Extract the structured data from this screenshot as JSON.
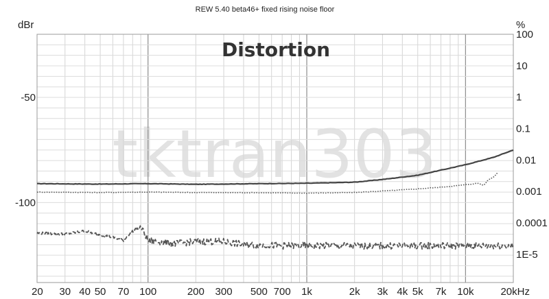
{
  "chart_data": {
    "type": "line",
    "title": "REW 5.40 beta46+ fixed rising noise floor",
    "heading": "Distortion",
    "watermark": "tktran303",
    "x_scale": "log",
    "xlim": [
      20,
      20000
    ],
    "x_ticks": [
      {
        "v": 20,
        "label": "20"
      },
      {
        "v": 30,
        "label": "30"
      },
      {
        "v": 40,
        "label": "40"
      },
      {
        "v": 50,
        "label": "50"
      },
      {
        "v": 70,
        "label": "70"
      },
      {
        "v": 100,
        "label": "100"
      },
      {
        "v": 200,
        "label": "200"
      },
      {
        "v": 300,
        "label": "300"
      },
      {
        "v": 500,
        "label": "500"
      },
      {
        "v": 700,
        "label": "700"
      },
      {
        "v": 1000,
        "label": "1k"
      },
      {
        "v": 2000,
        "label": "2k"
      },
      {
        "v": 3000,
        "label": "3k"
      },
      {
        "v": 4000,
        "label": "4k"
      },
      {
        "v": 5000,
        "label": "5k"
      },
      {
        "v": 7000,
        "label": "7k"
      },
      {
        "v": 10000,
        "label": "10k"
      },
      {
        "v": 20000,
        "label": "20kHz"
      }
    ],
    "left_axis": {
      "label": "dBr",
      "ylim": [
        -138,
        -20
      ],
      "ticks": [
        {
          "v": -50,
          "label": "-50"
        },
        {
          "v": -100,
          "label": "-100"
        }
      ]
    },
    "right_axis": {
      "label": "%",
      "scale": "log",
      "ylim": [
        1.26e-06,
        100
      ],
      "ticks": [
        {
          "v": 100,
          "label": "100"
        },
        {
          "v": 10,
          "label": "10"
        },
        {
          "v": 1,
          "label": "1"
        },
        {
          "v": 0.1,
          "label": "0.1"
        },
        {
          "v": 0.01,
          "label": "0.01"
        },
        {
          "v": 0.001,
          "label": "0.001"
        },
        {
          "v": 0.0001,
          "label": "0.0001"
        },
        {
          "v": 1e-05,
          "label": "1E-5"
        }
      ]
    },
    "grid": true,
    "series": [
      {
        "style": "solid",
        "color": "#444444",
        "axis": "left",
        "x": [
          20,
          50,
          100,
          200,
          500,
          1000,
          2000,
          3000,
          5000,
          10000,
          15000,
          20000
        ],
        "y": [
          -91,
          -91.2,
          -91,
          -91.3,
          -91,
          -90.8,
          -90.3,
          -89,
          -87,
          -82,
          -78.5,
          -75
        ]
      },
      {
        "style": "dotted",
        "color": "#555555",
        "axis": "left",
        "x": [
          20,
          50,
          100,
          200,
          500,
          1000,
          2000,
          3000,
          5000,
          8000,
          10000,
          12000,
          13000,
          14000,
          15000,
          16000
        ],
        "y": [
          -95,
          -95.2,
          -95,
          -95.2,
          -95.3,
          -95.5,
          -95.2,
          -94.5,
          -93.5,
          -92.3,
          -91.5,
          -90.8,
          -91.8,
          -89,
          -88,
          -85.5
        ]
      },
      {
        "style": "dashed",
        "color": "#555555",
        "axis": "left",
        "x": [
          20,
          30,
          40,
          45,
          60,
          70,
          80,
          90,
          100,
          150,
          200,
          300,
          400,
          700,
          1000,
          2000,
          5000,
          10000,
          20000
        ],
        "y": [
          -114.5,
          -115,
          -113.5,
          -114.5,
          -116.5,
          -118,
          -113.5,
          -111.5,
          -118,
          -119.5,
          -118.5,
          -118.5,
          -120,
          -120.5,
          -120.5,
          -120.5,
          -120.5,
          -120.5,
          -120.5
        ]
      }
    ]
  }
}
